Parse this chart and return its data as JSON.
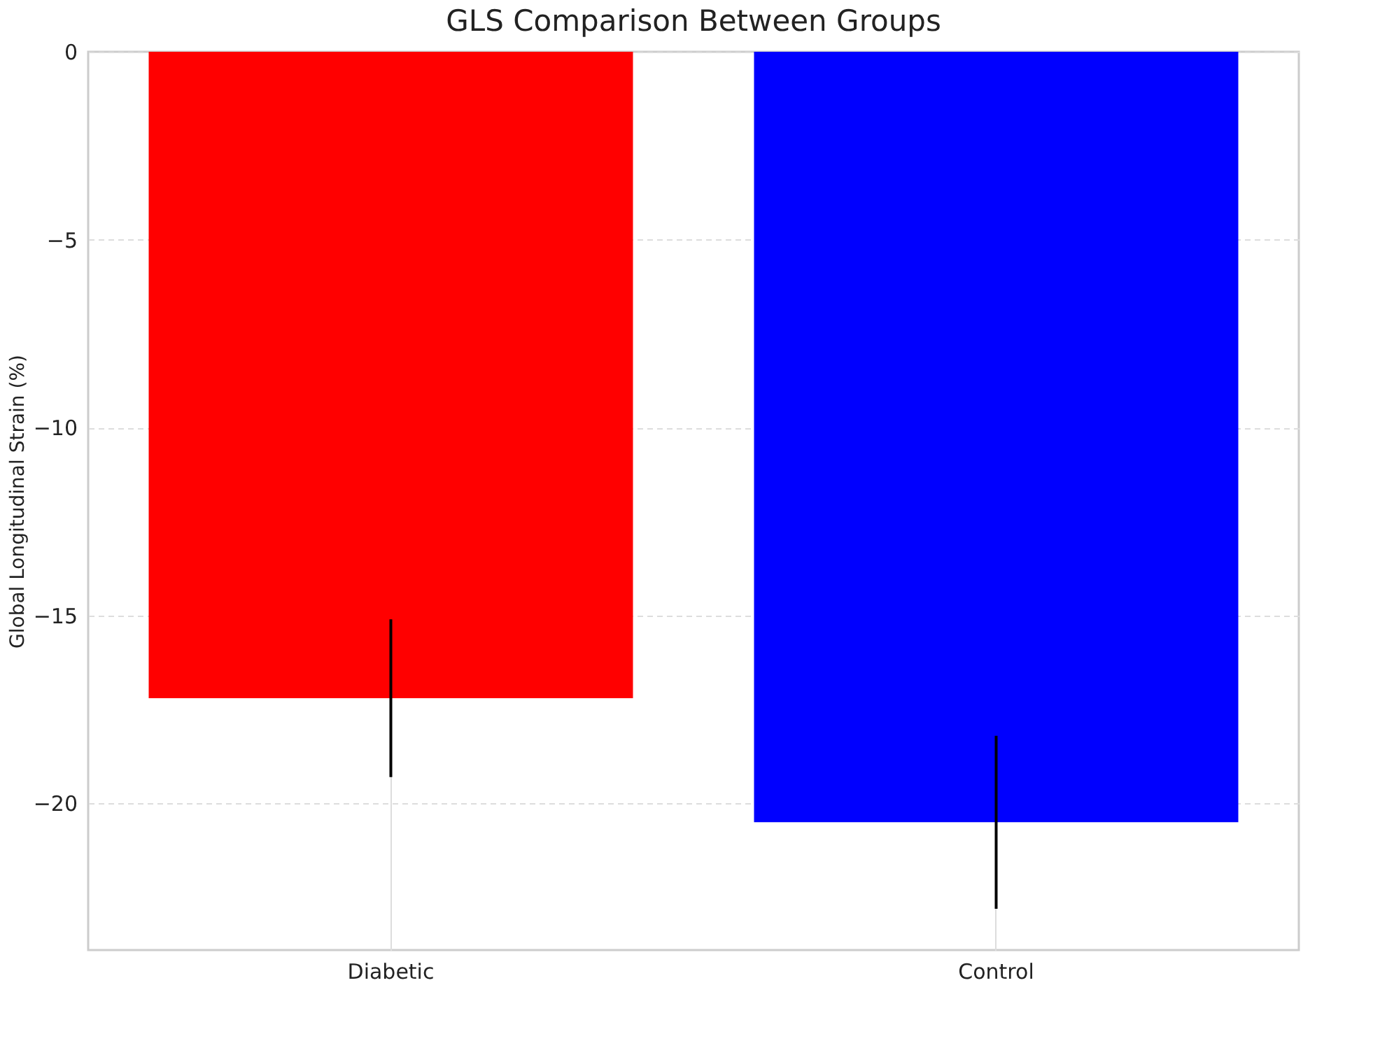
{
  "chart_data": {
    "type": "bar",
    "title": "GLS Comparison Between Groups",
    "ylabel": "Global Longitudinal Strain (%)",
    "categories": [
      "Diabetic",
      "Control"
    ],
    "values": [
      -17.2,
      -20.5
    ],
    "colors": [
      "#ff0000",
      "#0000ff"
    ],
    "errors": [
      2.1,
      2.3
    ],
    "ylim": [
      -23.9,
      0
    ],
    "yticks": [
      -20,
      -15,
      -10,
      -5,
      0
    ],
    "grid": true
  }
}
